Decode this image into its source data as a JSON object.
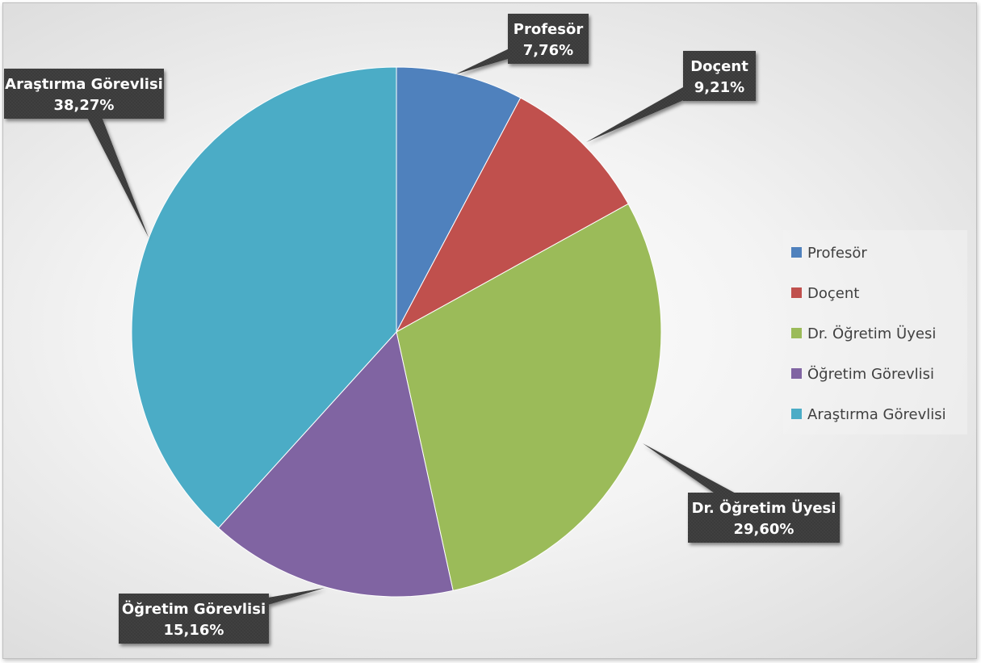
{
  "chart_data": {
    "type": "pie",
    "title": "",
    "categories": [
      "Profesör",
      "Doçent",
      "Dr. Öğretim Üyesi",
      "Öğretim Görevlisi",
      "Araştırma Görevlisi"
    ],
    "values": [
      7.76,
      9.21,
      29.6,
      15.16,
      38.27
    ],
    "value_labels": [
      "7,76%",
      "9,21%",
      "29,60%",
      "15,16%",
      "38,27%"
    ],
    "colors": [
      "#4F81BD",
      "#C0504D",
      "#9BBB59",
      "#8064A2",
      "#4BACC6"
    ],
    "start_angle": "12 o'clock",
    "direction": "clockwise",
    "legend": {
      "placement": "right",
      "entries": [
        "Profesör",
        "Doçent",
        "Dr. Öğretim Üyesi",
        "Öğretim Görevlisi",
        "Araştırma Görevlisi"
      ]
    },
    "data_labels": "callouts with category name and percentage"
  }
}
